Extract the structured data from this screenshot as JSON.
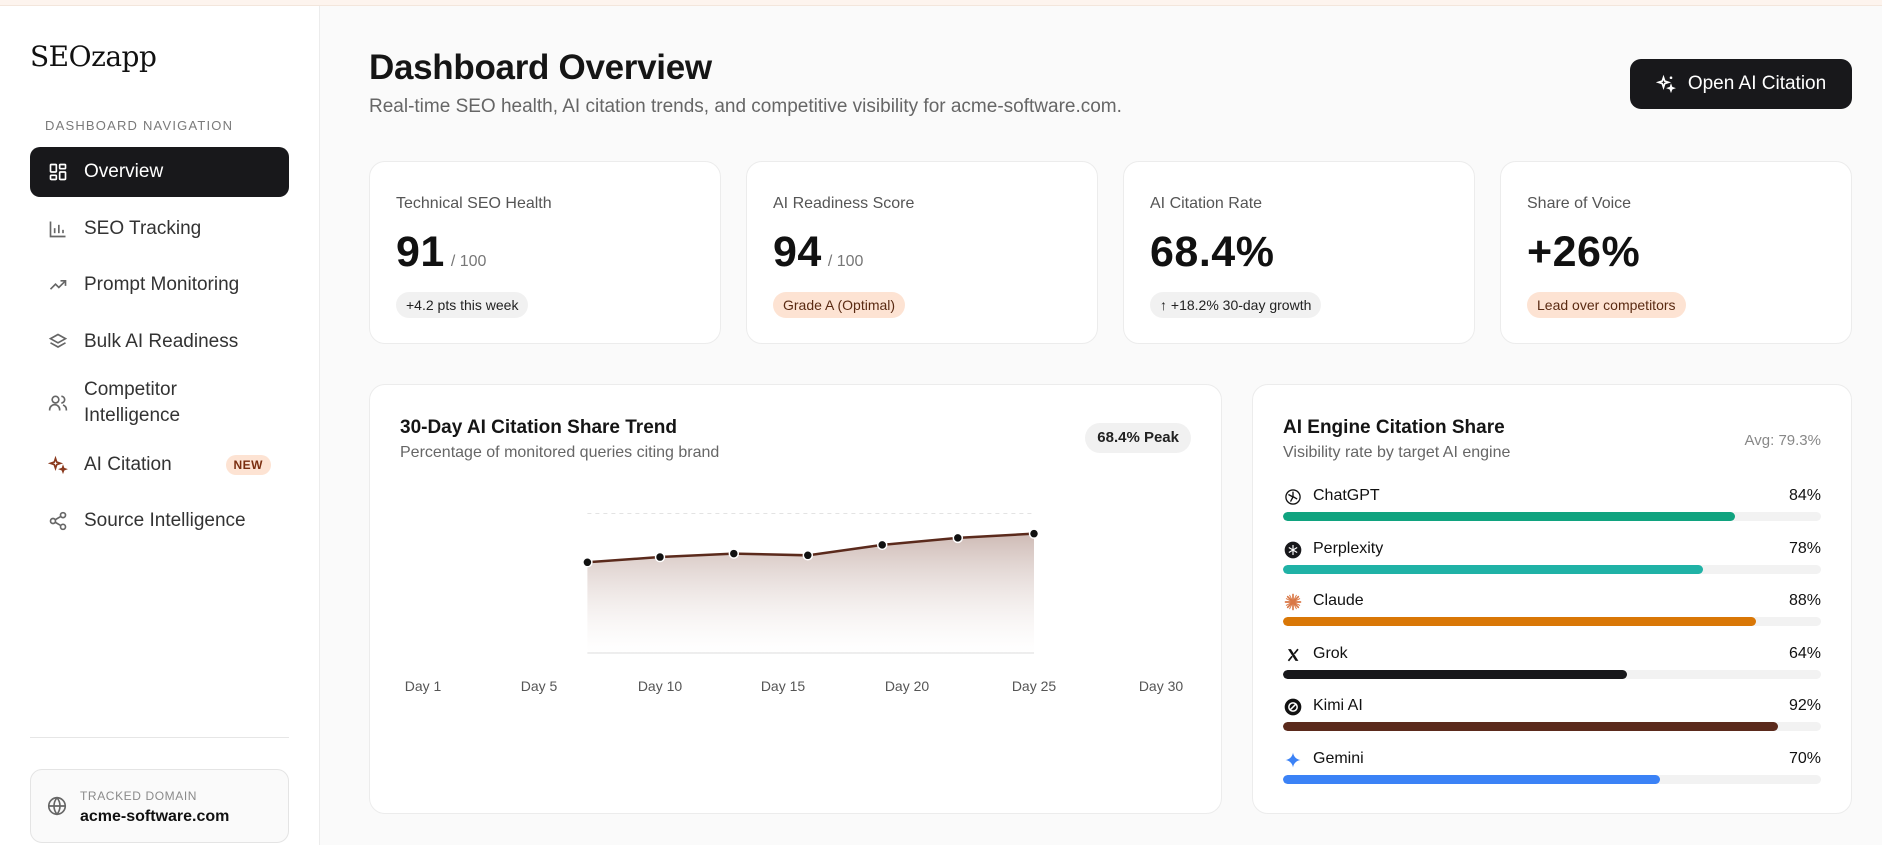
{
  "app": {
    "name": "SEOzapp"
  },
  "sidebar": {
    "caption": "DASHBOARD NAVIGATION",
    "items": [
      {
        "label": "Overview",
        "icon": "grid-icon",
        "active": true
      },
      {
        "label": "SEO Tracking",
        "icon": "bar-chart-icon"
      },
      {
        "label": "Prompt Monitoring",
        "icon": "trending-up-icon"
      },
      {
        "label": "Bulk AI Readiness",
        "icon": "layers-icon"
      },
      {
        "label": "Competitor Intelligence",
        "icon": "users-icon"
      },
      {
        "label": "AI Citation",
        "icon": "sparkles-icon",
        "badge": "NEW"
      },
      {
        "label": "Source Intelligence",
        "icon": "share-icon"
      }
    ],
    "domain": {
      "caption": "TRACKED DOMAIN",
      "value": "acme-software.com"
    }
  },
  "header": {
    "title": "Dashboard Overview",
    "subtitle": "Real-time SEO health, AI citation trends, and competitive visibility for acme-software.com.",
    "cta_label": "Open AI Citation"
  },
  "kpis": [
    {
      "label": "Technical SEO Health",
      "value": "91",
      "unit": "/ 100",
      "pill": "+4.2 pts this week"
    },
    {
      "label": "AI Readiness Score",
      "value": "94",
      "unit": "/ 100",
      "pill": "Grade A (Optimal)"
    },
    {
      "label": "AI Citation Rate",
      "value": "68.4%",
      "unit": "",
      "pill": "↑ +18.2% 30-day growth"
    },
    {
      "label": "Share of Voice",
      "value": "+26%",
      "unit": "",
      "pill": "Lead over competitors"
    }
  ],
  "trend": {
    "title": "30-Day AI Citation Share Trend",
    "subtitle": "Percentage of monitored queries citing brand",
    "peak_label": "68.4% Peak"
  },
  "engines": {
    "title": "AI Engine Citation Share",
    "subtitle": "Visibility rate by target AI engine",
    "avg_label": "Avg: 79.3%",
    "items": [
      {
        "name": "ChatGPT",
        "pct_label": "84%",
        "value": 84,
        "color": "#10a37f",
        "icon": "openai-icon"
      },
      {
        "name": "Perplexity",
        "pct_label": "78%",
        "value": 78,
        "color": "#20b2a6",
        "icon": "perplexity-icon"
      },
      {
        "name": "Claude",
        "pct_label": "88%",
        "value": 88,
        "color": "#d97706",
        "icon": "claude-icon"
      },
      {
        "name": "Grok",
        "pct_label": "64%",
        "value": 64,
        "color": "#18181b",
        "icon": "x-icon"
      },
      {
        "name": "Kimi AI",
        "pct_label": "92%",
        "value": 92,
        "color": "#5b2a1c",
        "icon": "kimi-icon"
      },
      {
        "name": "Gemini",
        "pct_label": "70%",
        "value": 70,
        "color": "#3b82f6",
        "icon": "gemini-icon"
      }
    ]
  },
  "chart_data": {
    "type": "area",
    "title": "30-Day AI Citation Share Trend",
    "x_ticks": [
      "Day 1",
      "Day 5",
      "Day 10",
      "Day 15",
      "Day 20",
      "Day 25",
      "Day 30"
    ],
    "x": [
      7,
      10,
      13,
      16,
      19,
      22,
      25
    ],
    "values": [
      52,
      55,
      57,
      56,
      62,
      66,
      68.4
    ],
    "ylim": [
      0,
      90
    ],
    "gridline": 80,
    "colors": {
      "line": "#5b2a1c",
      "area_top": "#c9b3ad"
    }
  }
}
